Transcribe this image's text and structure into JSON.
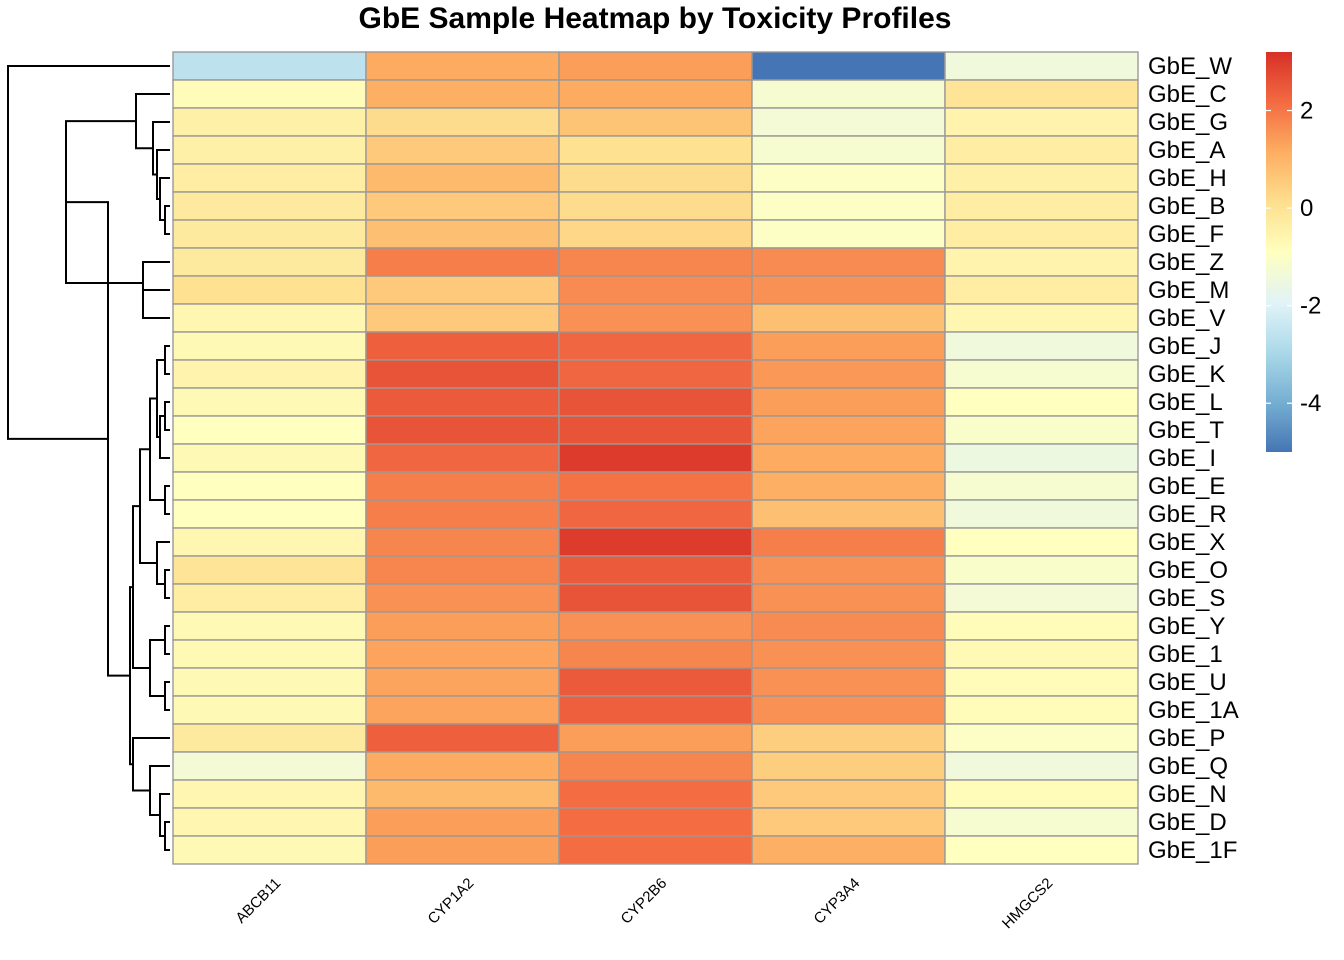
{
  "chart_data": {
    "type": "heatmap",
    "title": "GbE Sample Heatmap by Toxicity Profiles",
    "columns": [
      "ABCB11",
      "CYP1A2",
      "CYP2B6",
      "CYP3A4",
      "HMGCS2"
    ],
    "rows": [
      "GbE_W",
      "GbE_C",
      "GbE_G",
      "GbE_A",
      "GbE_H",
      "GbE_B",
      "GbE_F",
      "GbE_Z",
      "GbE_M",
      "GbE_V",
      "GbE_J",
      "GbE_K",
      "GbE_L",
      "GbE_T",
      "GbE_I",
      "GbE_E",
      "GbE_R",
      "GbE_X",
      "GbE_O",
      "GbE_S",
      "GbE_Y",
      "GbE_1",
      "GbE_U",
      "GbE_1A",
      "GbE_P",
      "GbE_Q",
      "GbE_N",
      "GbE_D",
      "GbE_1F"
    ],
    "values": [
      [
        -2.6,
        1.2,
        1.4,
        -5.0,
        -1.4
      ],
      [
        -0.8,
        1.1,
        1.2,
        -1.2,
        0.0
      ],
      [
        -0.4,
        0.2,
        0.7,
        -1.3,
        -0.5
      ],
      [
        -0.4,
        0.6,
        0.1,
        -1.2,
        -0.3
      ],
      [
        -0.3,
        0.9,
        0.2,
        -1.0,
        -0.4
      ],
      [
        -0.2,
        0.6,
        0.2,
        -1.0,
        -0.3
      ],
      [
        -0.2,
        0.8,
        0.3,
        -1.0,
        -0.3
      ],
      [
        -0.2,
        1.9,
        1.8,
        1.7,
        -0.5
      ],
      [
        0.1,
        0.6,
        1.7,
        1.6,
        -0.3
      ],
      [
        -0.6,
        0.6,
        1.6,
        0.8,
        -0.6
      ],
      [
        -0.7,
        2.4,
        2.3,
        1.4,
        -1.4
      ],
      [
        -0.5,
        2.6,
        2.3,
        1.5,
        -1.2
      ],
      [
        -0.7,
        2.5,
        2.6,
        1.4,
        -0.9
      ],
      [
        -0.9,
        2.6,
        2.6,
        1.3,
        -1.1
      ],
      [
        -0.7,
        2.3,
        3.0,
        1.2,
        -1.5
      ],
      [
        -0.9,
        1.9,
        2.1,
        1.1,
        -1.2
      ],
      [
        -0.9,
        1.9,
        2.3,
        0.8,
        -1.4
      ],
      [
        -0.6,
        1.8,
        3.0,
        1.9,
        -0.9
      ],
      [
        0.0,
        1.8,
        2.5,
        1.6,
        -1.1
      ],
      [
        -0.3,
        1.6,
        2.6,
        1.6,
        -1.3
      ],
      [
        -0.7,
        1.4,
        1.6,
        1.7,
        -0.8
      ],
      [
        -0.7,
        1.3,
        1.8,
        1.6,
        -0.7
      ],
      [
        -0.7,
        1.3,
        2.5,
        1.6,
        -0.8
      ],
      [
        -0.7,
        1.3,
        2.4,
        1.6,
        -0.8
      ],
      [
        -0.2,
        2.4,
        1.4,
        0.5,
        -1.0
      ],
      [
        -1.3,
        1.2,
        1.8,
        0.5,
        -1.4
      ],
      [
        -0.6,
        0.9,
        2.2,
        0.6,
        -0.8
      ],
      [
        -0.6,
        1.4,
        2.2,
        0.6,
        -1.2
      ],
      [
        -0.7,
        1.4,
        2.2,
        1.1,
        -0.9
      ]
    ],
    "color_scale": {
      "min": -5.0,
      "max": 3.2,
      "low": "#4575B4",
      "mid": "#FFFFBF",
      "high": "#D73027"
    },
    "legend": {
      "ticks": [
        2,
        0,
        -2,
        -4
      ],
      "tick_labels": [
        "2",
        "0",
        "-2",
        "-4"
      ],
      "placement": "right"
    },
    "row_dendrogram": true,
    "cell_border_color": "#999999"
  }
}
